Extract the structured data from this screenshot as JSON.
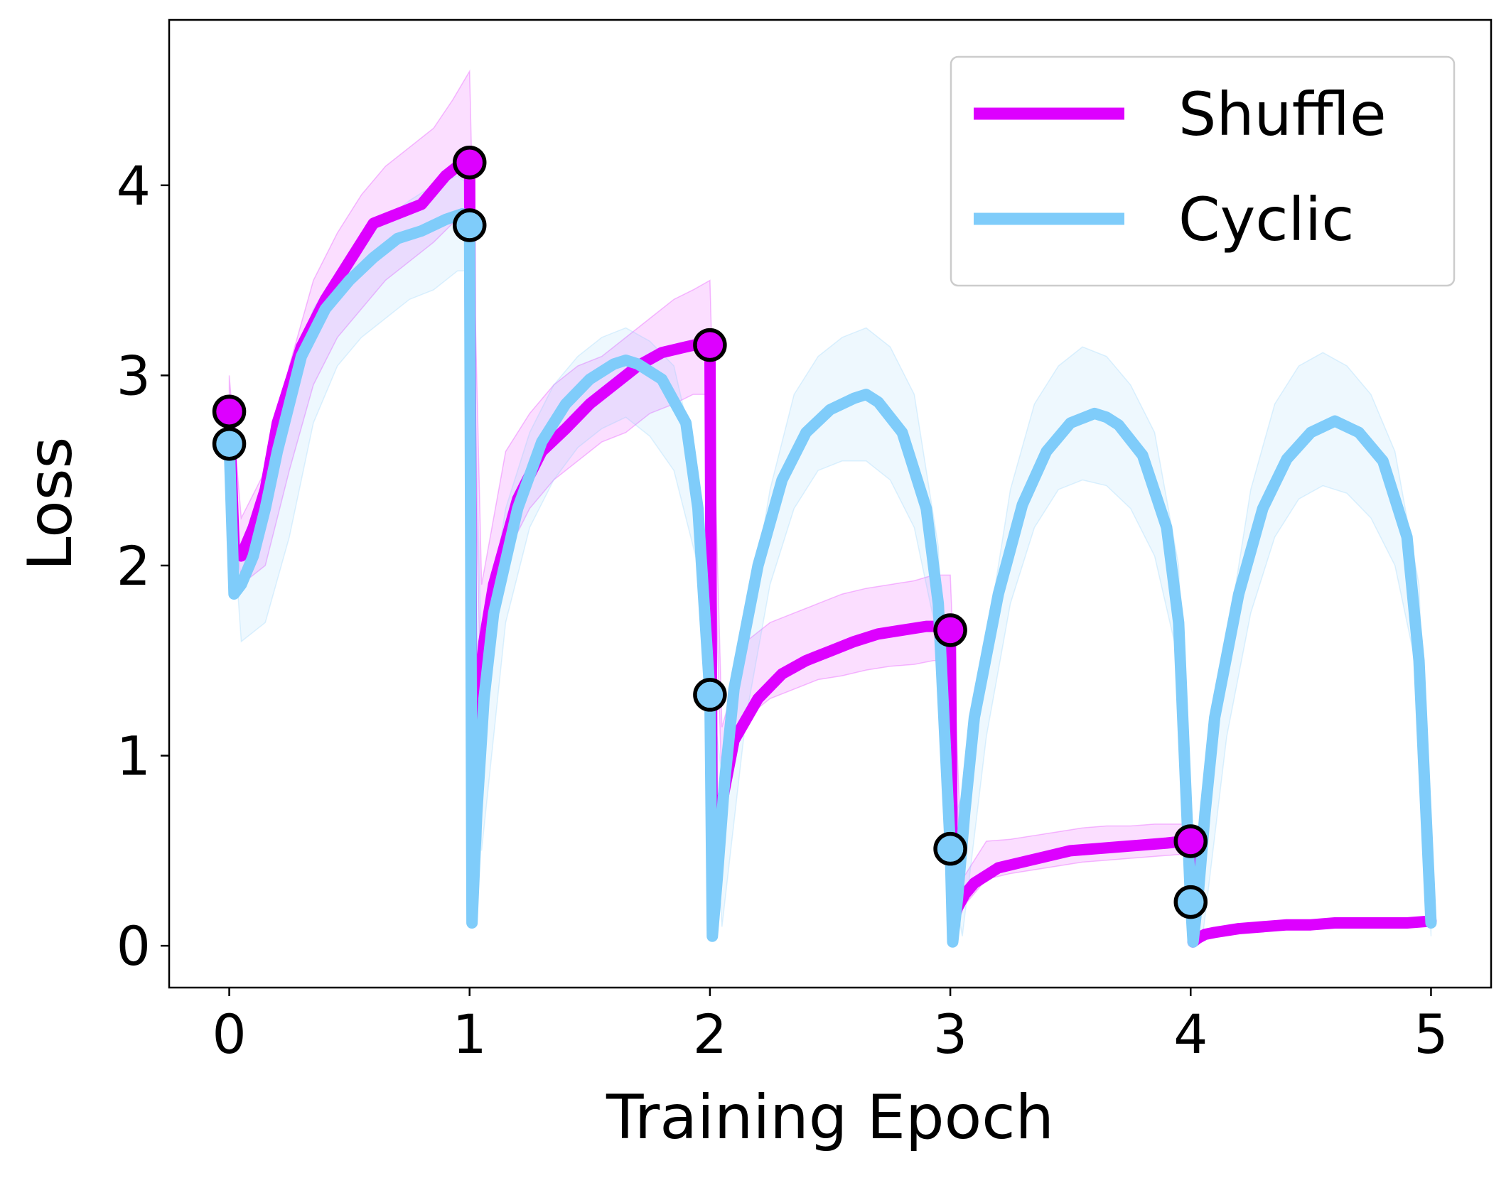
{
  "chart_data": {
    "type": "line",
    "title": "",
    "xlabel": "Training Epoch",
    "ylabel": "Loss",
    "xlim": [
      -0.25,
      5.25
    ],
    "ylim": [
      -0.22,
      4.87
    ],
    "xticks": [
      0,
      1,
      2,
      3,
      4,
      5
    ],
    "yticks": [
      0,
      1,
      2,
      3,
      4
    ],
    "grid": false,
    "legend_position": "top-right",
    "series": [
      {
        "name": "Shuffle",
        "color": "#dd00ff",
        "markers": [
          {
            "x": 0,
            "y": 2.81
          },
          {
            "x": 1,
            "y": 4.12
          },
          {
            "x": 2,
            "y": 3.16
          },
          {
            "x": 3,
            "y": 1.66
          },
          {
            "x": 4,
            "y": 0.55
          }
        ],
        "x": [
          0,
          0.02,
          0.05,
          0.1,
          0.15,
          0.2,
          0.3,
          0.4,
          0.5,
          0.6,
          0.7,
          0.8,
          0.9,
          0.97,
          1.0,
          1.01,
          1.03,
          1.06,
          1.1,
          1.2,
          1.3,
          1.4,
          1.5,
          1.6,
          1.7,
          1.8,
          1.9,
          1.97,
          2.0,
          2.01,
          2.03,
          2.06,
          2.1,
          2.2,
          2.3,
          2.4,
          2.5,
          2.6,
          2.7,
          2.8,
          2.9,
          2.97,
          3.0,
          3.01,
          3.03,
          3.06,
          3.1,
          3.2,
          3.3,
          3.4,
          3.5,
          3.6,
          3.7,
          3.8,
          3.9,
          3.97,
          4.0,
          4.01,
          4.03,
          4.06,
          4.1,
          4.2,
          4.3,
          4.4,
          4.5,
          4.6,
          4.7,
          4.8,
          4.9,
          5.0
        ],
        "y": [
          2.81,
          2.1,
          2.05,
          2.2,
          2.4,
          2.75,
          3.15,
          3.4,
          3.6,
          3.8,
          3.85,
          3.9,
          4.05,
          4.12,
          4.12,
          0.6,
          1.2,
          1.6,
          1.9,
          2.35,
          2.6,
          2.72,
          2.85,
          2.95,
          3.05,
          3.12,
          3.15,
          3.17,
          3.16,
          0.4,
          0.6,
          0.82,
          1.08,
          1.3,
          1.43,
          1.5,
          1.55,
          1.6,
          1.64,
          1.66,
          1.68,
          1.68,
          1.66,
          0.12,
          0.2,
          0.27,
          0.33,
          0.41,
          0.44,
          0.47,
          0.5,
          0.51,
          0.52,
          0.53,
          0.54,
          0.55,
          0.55,
          0.02,
          0.04,
          0.06,
          0.07,
          0.09,
          0.1,
          0.11,
          0.11,
          0.12,
          0.12,
          0.12,
          0.12,
          0.13
        ],
        "band_x": [
          0,
          0.05,
          0.15,
          0.25,
          0.35,
          0.45,
          0.55,
          0.65,
          0.75,
          0.85,
          0.93,
          1.0,
          1.05,
          1.15,
          1.25,
          1.35,
          1.45,
          1.55,
          1.65,
          1.75,
          1.85,
          1.93,
          2.0,
          2.05,
          2.15,
          2.25,
          2.35,
          2.45,
          2.55,
          2.65,
          2.75,
          2.85,
          2.93,
          3.0,
          3.05,
          3.15,
          3.25,
          3.35,
          3.45,
          3.55,
          3.65,
          3.75,
          3.85,
          3.95,
          4.0
        ],
        "band_upper": [
          3.0,
          2.25,
          2.5,
          3.05,
          3.5,
          3.75,
          3.95,
          4.1,
          4.2,
          4.3,
          4.45,
          4.6,
          1.9,
          2.6,
          2.8,
          2.95,
          3.05,
          3.1,
          3.2,
          3.3,
          3.4,
          3.45,
          3.5,
          1.15,
          1.6,
          1.7,
          1.75,
          1.8,
          1.85,
          1.88,
          1.9,
          1.92,
          1.95,
          1.95,
          0.35,
          0.55,
          0.56,
          0.58,
          0.6,
          0.62,
          0.63,
          0.63,
          0.64,
          0.64,
          0.64
        ],
        "band_lower": [
          2.6,
          1.9,
          2.0,
          2.5,
          2.95,
          3.2,
          3.35,
          3.5,
          3.6,
          3.7,
          3.8,
          3.85,
          1.1,
          2.05,
          2.3,
          2.45,
          2.55,
          2.65,
          2.7,
          2.8,
          2.85,
          2.9,
          2.9,
          0.8,
          1.2,
          1.3,
          1.35,
          1.4,
          1.42,
          1.45,
          1.47,
          1.48,
          1.5,
          1.5,
          0.2,
          0.35,
          0.38,
          0.4,
          0.42,
          0.44,
          0.45,
          0.46,
          0.47,
          0.48,
          0.48
        ]
      },
      {
        "name": "Cyclic",
        "color": "#7fccfa",
        "markers": [
          {
            "x": 0,
            "y": 2.64
          },
          {
            "x": 1,
            "y": 3.79
          },
          {
            "x": 2,
            "y": 1.32
          },
          {
            "x": 3,
            "y": 0.51
          },
          {
            "x": 4,
            "y": 0.23
          }
        ],
        "x": [
          0,
          0.02,
          0.05,
          0.1,
          0.15,
          0.2,
          0.3,
          0.4,
          0.5,
          0.6,
          0.7,
          0.8,
          0.9,
          0.97,
          1.0,
          1.01,
          1.03,
          1.06,
          1.1,
          1.2,
          1.3,
          1.4,
          1.5,
          1.6,
          1.65,
          1.7,
          1.8,
          1.9,
          1.95,
          2.0,
          2.01,
          2.03,
          2.06,
          2.1,
          2.2,
          2.3,
          2.4,
          2.5,
          2.6,
          2.65,
          2.7,
          2.8,
          2.9,
          2.95,
          3.0,
          3.01,
          3.03,
          3.06,
          3.1,
          3.2,
          3.3,
          3.4,
          3.5,
          3.6,
          3.65,
          3.7,
          3.8,
          3.9,
          3.95,
          4.0,
          4.01,
          4.03,
          4.06,
          4.1,
          4.2,
          4.3,
          4.4,
          4.5,
          4.6,
          4.65,
          4.7,
          4.8,
          4.9,
          4.95,
          5.0
        ],
        "y": [
          2.64,
          1.85,
          1.9,
          2.05,
          2.3,
          2.6,
          3.1,
          3.35,
          3.5,
          3.62,
          3.72,
          3.76,
          3.82,
          3.85,
          3.79,
          0.12,
          0.7,
          1.3,
          1.75,
          2.3,
          2.65,
          2.85,
          2.98,
          3.06,
          3.08,
          3.06,
          2.98,
          2.75,
          2.3,
          1.32,
          0.05,
          0.35,
          0.85,
          1.35,
          2.0,
          2.45,
          2.7,
          2.82,
          2.88,
          2.9,
          2.86,
          2.7,
          2.3,
          1.8,
          0.51,
          0.02,
          0.25,
          0.7,
          1.2,
          1.85,
          2.32,
          2.6,
          2.75,
          2.8,
          2.78,
          2.74,
          2.58,
          2.2,
          1.7,
          0.23,
          0.02,
          0.25,
          0.7,
          1.2,
          1.85,
          2.3,
          2.56,
          2.7,
          2.76,
          2.73,
          2.7,
          2.55,
          2.15,
          1.5,
          0.12
        ],
        "band_x": [
          0,
          0.05,
          0.15,
          0.25,
          0.35,
          0.45,
          0.55,
          0.65,
          0.75,
          0.85,
          0.95,
          1.0,
          1.05,
          1.15,
          1.25,
          1.35,
          1.45,
          1.55,
          1.65,
          1.75,
          1.85,
          1.95,
          2.0,
          2.05,
          2.15,
          2.25,
          2.35,
          2.45,
          2.55,
          2.65,
          2.75,
          2.85,
          2.95,
          3.0,
          3.05,
          3.15,
          3.25,
          3.35,
          3.45,
          3.55,
          3.65,
          3.75,
          3.85,
          3.95,
          4.0,
          4.05,
          4.15,
          4.25,
          4.35,
          4.45,
          4.55,
          4.65,
          4.75,
          4.85,
          4.95,
          5.0
        ],
        "band_upper": [
          2.7,
          2.05,
          2.35,
          2.95,
          3.35,
          3.55,
          3.7,
          3.82,
          3.92,
          4.0,
          4.05,
          4.0,
          1.5,
          2.3,
          2.7,
          2.95,
          3.1,
          3.2,
          3.25,
          3.18,
          3.05,
          2.5,
          1.4,
          0.9,
          1.65,
          2.4,
          2.9,
          3.1,
          3.2,
          3.25,
          3.15,
          2.9,
          2.1,
          0.6,
          0.8,
          1.6,
          2.4,
          2.85,
          3.05,
          3.15,
          3.1,
          2.95,
          2.7,
          2.0,
          0.3,
          0.8,
          1.6,
          2.4,
          2.85,
          3.05,
          3.12,
          3.05,
          2.9,
          2.6,
          1.9,
          0.2
        ],
        "band_lower": [
          2.5,
          1.6,
          1.7,
          2.15,
          2.75,
          3.05,
          3.2,
          3.3,
          3.4,
          3.45,
          3.55,
          3.55,
          0.5,
          1.7,
          2.2,
          2.45,
          2.62,
          2.72,
          2.78,
          2.68,
          2.5,
          2.0,
          1.2,
          0.1,
          1.2,
          1.9,
          2.3,
          2.5,
          2.55,
          2.55,
          2.45,
          2.2,
          1.6,
          0.4,
          0.05,
          1.1,
          1.8,
          2.2,
          2.4,
          2.45,
          2.42,
          2.3,
          2.05,
          1.5,
          0.15,
          0.05,
          1.1,
          1.75,
          2.15,
          2.35,
          2.42,
          2.38,
          2.25,
          2.0,
          1.4,
          0.05
        ]
      }
    ]
  }
}
